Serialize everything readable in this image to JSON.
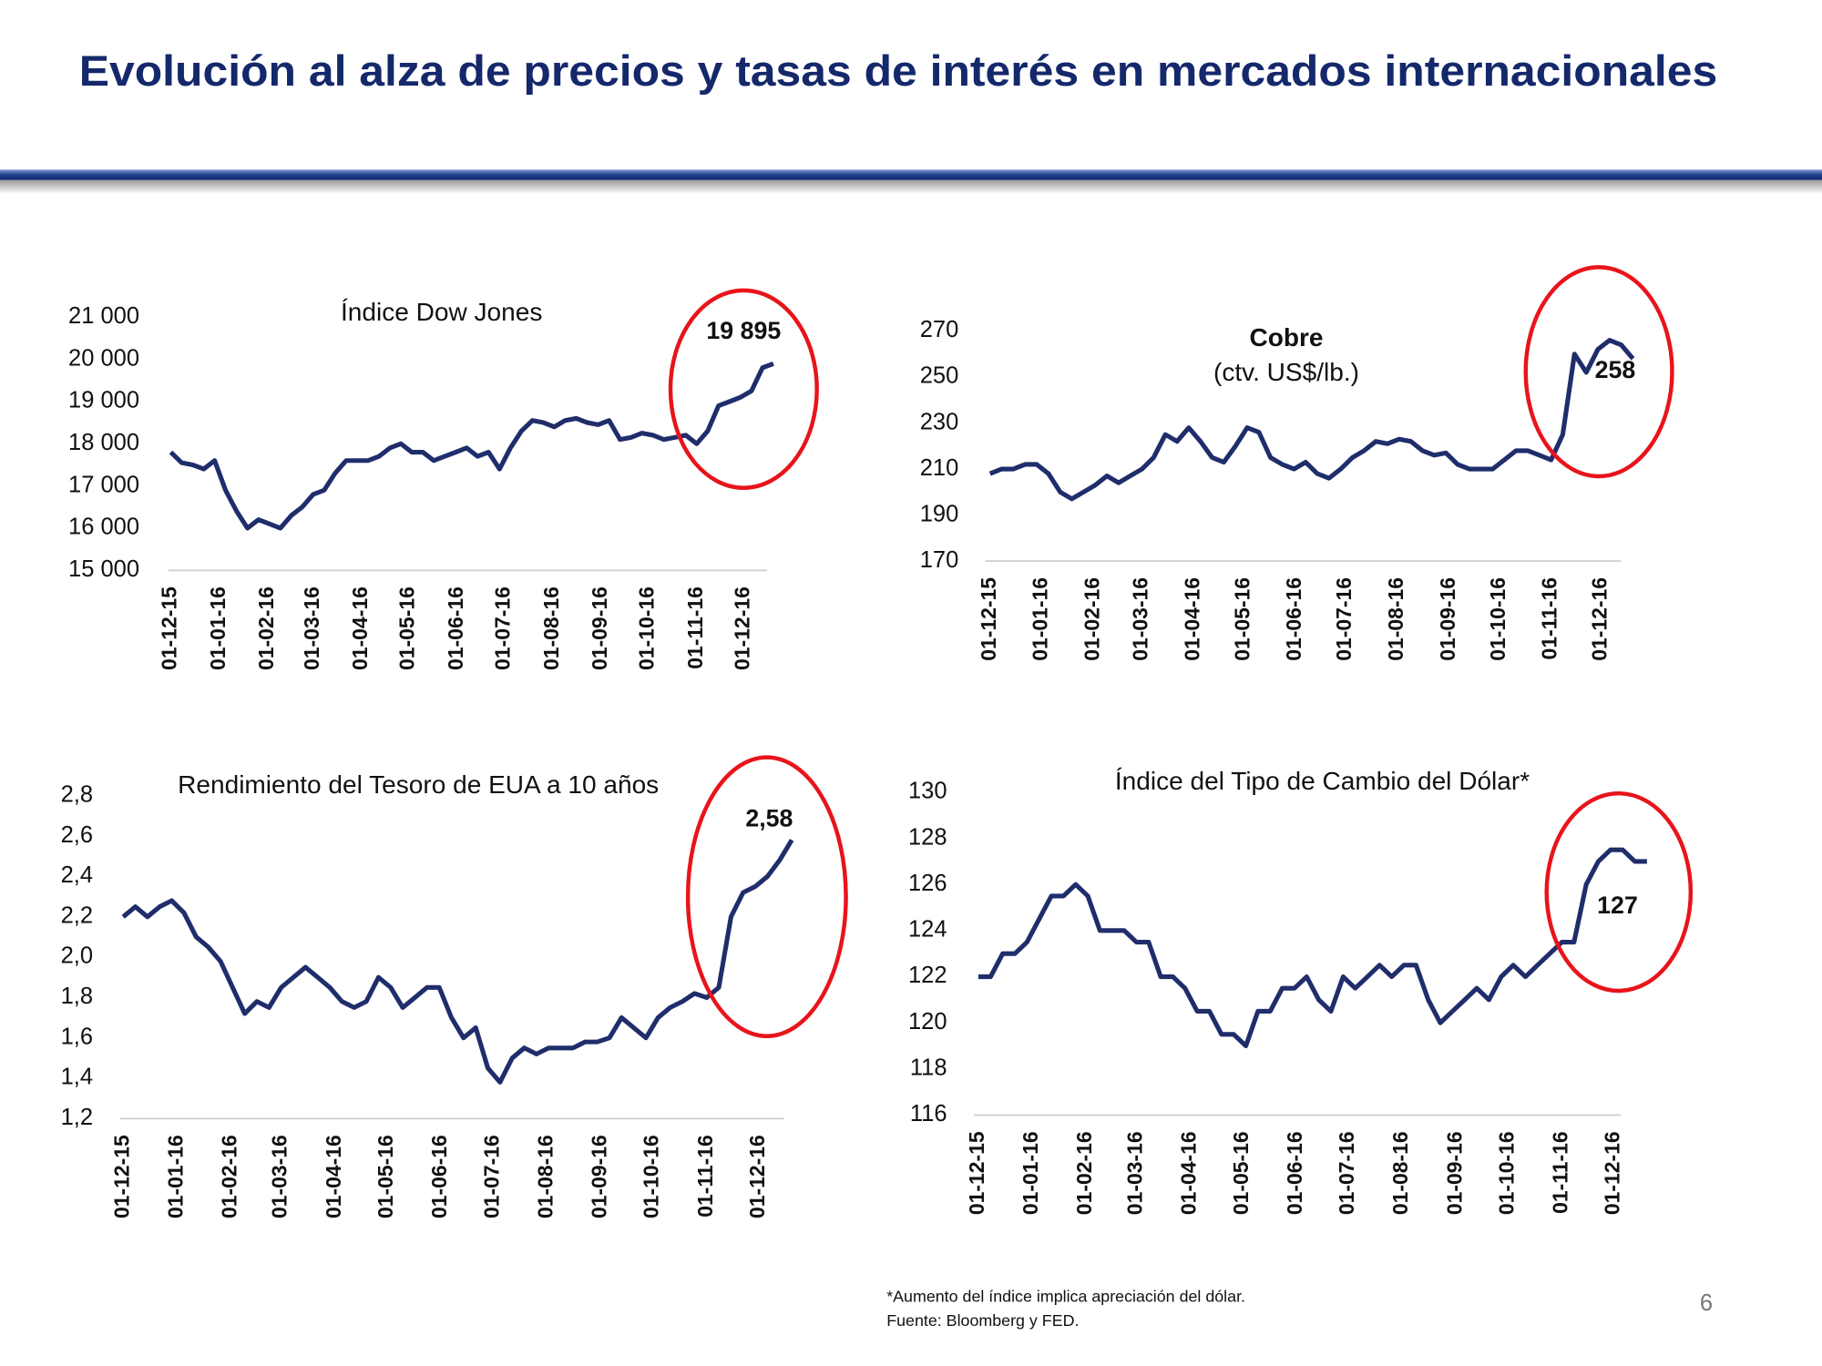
{
  "page_title": "Evolución al alza de precios y tasas de interés en mercados internacionales",
  "footnotes": [
    "*Aumento del índice implica apreciación del dólar.",
    "Fuente: Bloomberg y FED."
  ],
  "page_number": "6",
  "chart_data": [
    {
      "type": "line",
      "title": "Índice Dow Jones",
      "annotation": "19 895",
      "color": "#1f2d6b",
      "highlight_color": "#e8141b",
      "x": [
        "01-12-15",
        "08-12-15",
        "15-12-15",
        "22-12-15",
        "29-12-15",
        "05-01-16",
        "12-01-16",
        "19-01-16",
        "26-01-16",
        "02-02-16",
        "09-02-16",
        "16-02-16",
        "23-02-16",
        "01-03-16",
        "08-03-16",
        "15-03-16",
        "22-03-16",
        "29-03-16",
        "05-04-16",
        "12-04-16",
        "19-04-16",
        "26-04-16",
        "03-05-16",
        "10-05-16",
        "17-05-16",
        "24-05-16",
        "31-05-16",
        "07-06-16",
        "14-06-16",
        "21-06-16",
        "28-06-16",
        "05-07-16",
        "12-07-16",
        "19-07-16",
        "26-07-16",
        "02-08-16",
        "09-08-16",
        "16-08-16",
        "23-08-16",
        "30-08-16",
        "06-09-16",
        "13-09-16",
        "20-09-16",
        "27-09-16",
        "04-10-16",
        "11-10-16",
        "18-10-16",
        "25-10-16",
        "01-11-16",
        "08-11-16",
        "15-11-16",
        "22-11-16",
        "29-11-16",
        "06-12-16",
        "13-12-16",
        "20-12-16"
      ],
      "values": [
        17800,
        17550,
        17500,
        17400,
        17600,
        16900,
        16400,
        16000,
        16200,
        16100,
        16000,
        16300,
        16500,
        16800,
        16900,
        17300,
        17600,
        17600,
        17600,
        17700,
        17900,
        18000,
        17800,
        17800,
        17600,
        17700,
        17800,
        17900,
        17700,
        17800,
        17400,
        17900,
        18300,
        18550,
        18500,
        18400,
        18550,
        18600,
        18500,
        18450,
        18550,
        18100,
        18150,
        18250,
        18200,
        18100,
        18150,
        18200,
        18000,
        18300,
        18900,
        19000,
        19100,
        19250,
        19800,
        19895
      ],
      "ylim": [
        15000,
        21000
      ],
      "yticks": [
        {
          "value": 15000,
          "label": "15 000"
        },
        {
          "value": 16000,
          "label": "16 000"
        },
        {
          "value": 17000,
          "label": "17 000"
        },
        {
          "value": 18000,
          "label": "18 000"
        },
        {
          "value": 19000,
          "label": "19 000"
        },
        {
          "value": 20000,
          "label": "20 000"
        },
        {
          "value": 21000,
          "label": "21 000"
        }
      ],
      "xticks": [
        "01-12-15",
        "01-01-16",
        "01-02-16",
        "01-03-16",
        "01-04-16",
        "01-05-16",
        "01-06-16",
        "01-07-16",
        "01-08-16",
        "01-09-16",
        "01-10-16",
        "01-11-16",
        "01-12-16"
      ]
    },
    {
      "type": "line",
      "title": "Cobre",
      "subtitle": "(ctv. US$/lb.)",
      "annotation": "258",
      "color": "#1f2d6b",
      "highlight_color": "#e8141b",
      "x": [
        "01-12-15",
        "08-12-15",
        "15-12-15",
        "22-12-15",
        "29-12-15",
        "05-01-16",
        "12-01-16",
        "19-01-16",
        "26-01-16",
        "02-02-16",
        "09-02-16",
        "16-02-16",
        "23-02-16",
        "01-03-16",
        "08-03-16",
        "15-03-16",
        "22-03-16",
        "29-03-16",
        "05-04-16",
        "12-04-16",
        "19-04-16",
        "26-04-16",
        "03-05-16",
        "10-05-16",
        "17-05-16",
        "24-05-16",
        "31-05-16",
        "07-06-16",
        "14-06-16",
        "21-06-16",
        "28-06-16",
        "05-07-16",
        "12-07-16",
        "19-07-16",
        "26-07-16",
        "02-08-16",
        "09-08-16",
        "16-08-16",
        "23-08-16",
        "30-08-16",
        "06-09-16",
        "13-09-16",
        "20-09-16",
        "27-09-16",
        "04-10-16",
        "11-10-16",
        "18-10-16",
        "25-10-16",
        "01-11-16",
        "08-11-16",
        "15-11-16",
        "22-11-16",
        "29-11-16",
        "06-12-16",
        "13-12-16",
        "20-12-16"
      ],
      "values": [
        208,
        210,
        210,
        212,
        212,
        208,
        200,
        197,
        200,
        203,
        207,
        204,
        207,
        210,
        215,
        225,
        222,
        228,
        222,
        215,
        213,
        220,
        228,
        226,
        215,
        212,
        210,
        213,
        208,
        206,
        210,
        215,
        218,
        222,
        221,
        223,
        222,
        218,
        216,
        217,
        212,
        210,
        210,
        210,
        214,
        218,
        218,
        216,
        214,
        225,
        260,
        252,
        262,
        266,
        264,
        258
      ],
      "ylim": [
        170,
        270
      ],
      "yticks": [
        170,
        190,
        210,
        230,
        250,
        270
      ],
      "xticks": [
        "01-12-15",
        "01-01-16",
        "01-02-16",
        "01-03-16",
        "01-04-16",
        "01-05-16",
        "01-06-16",
        "01-07-16",
        "01-08-16",
        "01-09-16",
        "01-10-16",
        "01-11-16",
        "01-12-16"
      ]
    },
    {
      "type": "line",
      "title": "Rendimiento del Tesoro de EUA a 10 años",
      "annotation": "2,58",
      "color": "#1f2d6b",
      "highlight_color": "#e8141b",
      "x": [
        "01-12-15",
        "08-12-15",
        "15-12-15",
        "22-12-15",
        "29-12-15",
        "05-01-16",
        "12-01-16",
        "19-01-16",
        "26-01-16",
        "02-02-16",
        "09-02-16",
        "16-02-16",
        "23-02-16",
        "01-03-16",
        "08-03-16",
        "15-03-16",
        "22-03-16",
        "29-03-16",
        "05-04-16",
        "12-04-16",
        "19-04-16",
        "26-04-16",
        "03-05-16",
        "10-05-16",
        "17-05-16",
        "24-05-16",
        "31-05-16",
        "07-06-16",
        "14-06-16",
        "21-06-16",
        "28-06-16",
        "05-07-16",
        "12-07-16",
        "19-07-16",
        "26-07-16",
        "02-08-16",
        "09-08-16",
        "16-08-16",
        "23-08-16",
        "30-08-16",
        "06-09-16",
        "13-09-16",
        "20-09-16",
        "27-09-16",
        "04-10-16",
        "11-10-16",
        "18-10-16",
        "25-10-16",
        "01-11-16",
        "08-11-16",
        "15-11-16",
        "22-11-16",
        "29-11-16",
        "06-12-16",
        "13-12-16",
        "20-12-16"
      ],
      "values": [
        2.2,
        2.25,
        2.2,
        2.25,
        2.28,
        2.22,
        2.1,
        2.05,
        1.98,
        1.85,
        1.72,
        1.78,
        1.75,
        1.85,
        1.9,
        1.95,
        1.9,
        1.85,
        1.78,
        1.75,
        1.78,
        1.9,
        1.85,
        1.75,
        1.8,
        1.85,
        1.85,
        1.7,
        1.6,
        1.65,
        1.45,
        1.38,
        1.5,
        1.55,
        1.52,
        1.55,
        1.55,
        1.55,
        1.58,
        1.58,
        1.6,
        1.7,
        1.65,
        1.6,
        1.7,
        1.75,
        1.78,
        1.82,
        1.8,
        1.85,
        2.2,
        2.32,
        2.35,
        2.4,
        2.48,
        2.58
      ],
      "ylim": [
        1.2,
        2.8
      ],
      "yticks": [
        {
          "value": 1.2,
          "label": "1,2"
        },
        {
          "value": 1.4,
          "label": "1,4"
        },
        {
          "value": 1.6,
          "label": "1,6"
        },
        {
          "value": 1.8,
          "label": "1,8"
        },
        {
          "value": 2.0,
          "label": "2,0"
        },
        {
          "value": 2.2,
          "label": "2,2"
        },
        {
          "value": 2.4,
          "label": "2,4"
        },
        {
          "value": 2.6,
          "label": "2,6"
        },
        {
          "value": 2.8,
          "label": "2,8"
        }
      ],
      "xticks": [
        "01-12-15",
        "01-01-16",
        "01-02-16",
        "01-03-16",
        "01-04-16",
        "01-05-16",
        "01-06-16",
        "01-07-16",
        "01-08-16",
        "01-09-16",
        "01-10-16",
        "01-11-16",
        "01-12-16"
      ]
    },
    {
      "type": "line",
      "title": "Índice del Tipo de Cambio del Dólar*",
      "annotation": "127",
      "color": "#1f2d6b",
      "highlight_color": "#e8141b",
      "x": [
        "01-12-15",
        "08-12-15",
        "15-12-15",
        "22-12-15",
        "29-12-15",
        "05-01-16",
        "12-01-16",
        "19-01-16",
        "26-01-16",
        "02-02-16",
        "09-02-16",
        "16-02-16",
        "23-02-16",
        "01-03-16",
        "08-03-16",
        "15-03-16",
        "22-03-16",
        "29-03-16",
        "05-04-16",
        "12-04-16",
        "19-04-16",
        "26-04-16",
        "03-05-16",
        "10-05-16",
        "17-05-16",
        "24-05-16",
        "31-05-16",
        "07-06-16",
        "14-06-16",
        "21-06-16",
        "28-06-16",
        "05-07-16",
        "12-07-16",
        "19-07-16",
        "26-07-16",
        "02-08-16",
        "09-08-16",
        "16-08-16",
        "23-08-16",
        "30-08-16",
        "06-09-16",
        "13-09-16",
        "20-09-16",
        "27-09-16",
        "04-10-16",
        "11-10-16",
        "18-10-16",
        "25-10-16",
        "01-11-16",
        "08-11-16",
        "15-11-16",
        "22-11-16",
        "29-11-16",
        "06-12-16",
        "13-12-16",
        "20-12-16"
      ],
      "values": [
        122,
        122,
        123,
        123,
        123.5,
        124.5,
        125.5,
        125.5,
        126,
        125.5,
        124,
        124,
        124,
        123.5,
        123.5,
        122,
        122,
        121.5,
        120.5,
        120.5,
        119.5,
        119.5,
        119,
        120.5,
        120.5,
        121.5,
        121.5,
        122,
        121,
        120.5,
        122,
        121.5,
        122,
        122.5,
        122,
        122.5,
        122.5,
        121,
        120,
        120.5,
        121,
        121.5,
        121,
        122,
        122.5,
        122,
        122.5,
        123,
        123.5,
        123.5,
        126,
        127,
        127.5,
        127.5,
        127,
        127
      ],
      "ylim": [
        116,
        130
      ],
      "yticks": [
        116,
        118,
        120,
        122,
        124,
        126,
        128,
        130
      ],
      "xticks": [
        "01-12-15",
        "01-01-16",
        "01-02-16",
        "01-03-16",
        "01-04-16",
        "01-05-16",
        "01-06-16",
        "01-07-16",
        "01-08-16",
        "01-09-16",
        "01-10-16",
        "01-11-16",
        "01-12-16"
      ]
    }
  ]
}
